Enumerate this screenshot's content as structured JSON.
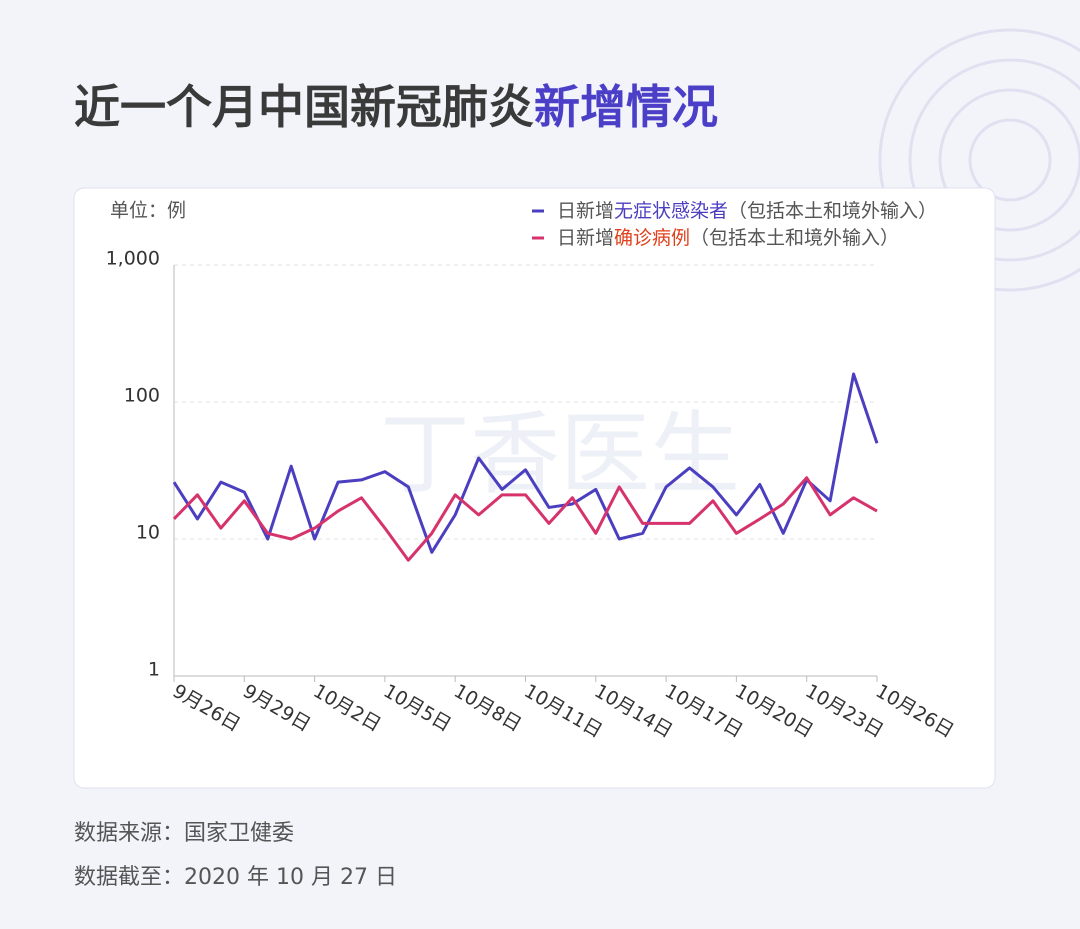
{
  "chart_data": {
    "type": "line",
    "title": [
      "近一个月中国新冠肺炎",
      "新增情况"
    ],
    "unit": "单位：例",
    "watermark": "丁香医生",
    "categories": [
      "9月26日",
      null,
      null,
      "9月29日",
      null,
      null,
      "10月2日",
      null,
      null,
      "10月5日",
      null,
      null,
      "10月8日",
      null,
      null,
      "10月11日",
      null,
      null,
      "10月14日",
      null,
      null,
      "10月17日",
      null,
      null,
      "10月20日",
      null,
      null,
      "10月23日",
      null,
      null,
      "10月26日"
    ],
    "series": [
      {
        "name": [
          "日新增",
          "无症状感染者",
          "（包括本土和境外输入）"
        ],
        "color": "#4b3fc0",
        "name_color": "#4b3fc0",
        "values": [
          26,
          14,
          26,
          22,
          10,
          34,
          10,
          26,
          27,
          31,
          24,
          8,
          15,
          39,
          23,
          32,
          17,
          18,
          23,
          10,
          11,
          24,
          33,
          24,
          15,
          25,
          11,
          27,
          19,
          160,
          50
        ]
      },
      {
        "name": [
          "日新增",
          "确诊病例",
          "（包括本土和境外输入）"
        ],
        "color": "#d6336c",
        "name_color": "#e0401a",
        "values": [
          14,
          21,
          12,
          19,
          11,
          10,
          12,
          16,
          20,
          12,
          7,
          11,
          21,
          15,
          21,
          21,
          13,
          20,
          11,
          24,
          13,
          13,
          13,
          19,
          11,
          14,
          18,
          28,
          15,
          20,
          16
        ]
      }
    ],
    "yscale": "log",
    "ylim": [
      1,
      1000
    ],
    "yticks": [
      {
        "value": 1000,
        "label": "1,000"
      },
      100,
      10,
      1
    ],
    "grid": true,
    "source": "数据来源：国家卫健委",
    "date_note": "数据截至：2020 年 10 月 27 日"
  }
}
